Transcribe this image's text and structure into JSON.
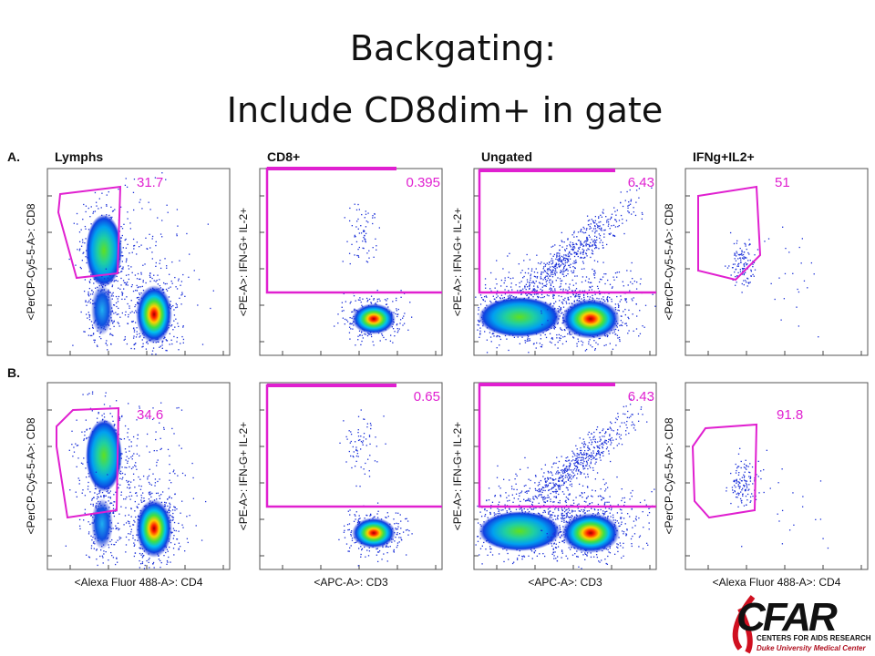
{
  "title": [
    "Backgating:",
    "Include CD8dim+ in gate"
  ],
  "panel_titles": [
    "Lymphs",
    "CD8+",
    "Ungated",
    "IFNg+IL2+"
  ],
  "rows": [
    {
      "label": "A.",
      "panels": [
        {
          "gate_value": "31.7",
          "y_label": "<PerCP-Cy5-5-A>: CD8"
        },
        {
          "gate_value": "0.395",
          "y_label": "<PE-A>: IFN-G+ IL-2+"
        },
        {
          "gate_value": "6.43",
          "y_label": "<PE-A>: IFN-G+ IL-2+"
        },
        {
          "gate_value": "51",
          "y_label": "<PerCP-Cy5-5-A>: CD8"
        }
      ]
    },
    {
      "label": "B.",
      "panels": [
        {
          "gate_value": "34.6",
          "y_label": "<PerCP-Cy5-5-A>: CD8"
        },
        {
          "gate_value": "0.65",
          "y_label": "<PE-A>: IFN-G+ IL-2+"
        },
        {
          "gate_value": "6.43",
          "y_label": "<PE-A>: IFN-G+ IL-2+"
        },
        {
          "gate_value": "91.8",
          "y_label": "<PerCP-Cy5-5-A>: CD8"
        }
      ]
    }
  ],
  "x_labels": [
    "<Alexa Fluor 488-A>: CD4",
    "<APC-A>: CD3",
    "<APC-A>: CD3",
    "<Alexa Fluor 488-A>: CD4"
  ],
  "logo": {
    "name": "CFAR",
    "line1": "CENTERS FOR AIDS RESEARCH",
    "line2": "Duke University Medical Center"
  }
}
